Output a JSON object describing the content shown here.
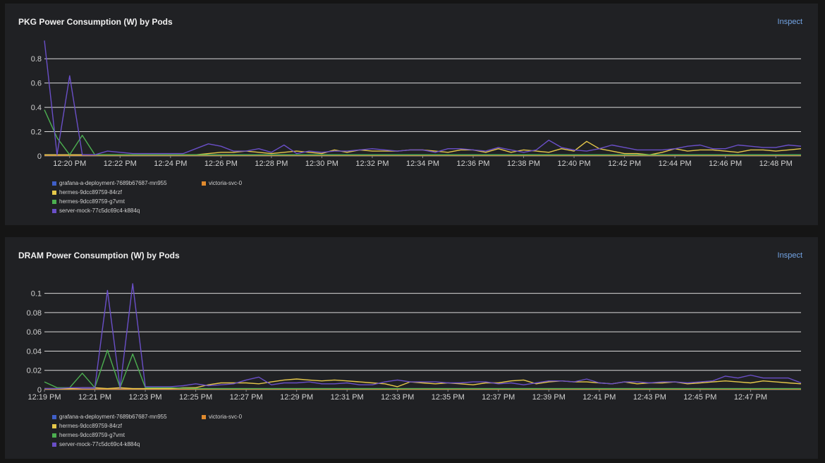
{
  "panels": [
    {
      "title": "PKG Power Consumption (W) by Pods",
      "inspect_label": "Inspect",
      "legend": [
        {
          "label": "grafana-a-deployment-7689b67687-mn955",
          "color": "#3f5fc8"
        },
        {
          "label": "victoria-svc-0",
          "color": "#e08a2e"
        },
        {
          "label": "hermes-9dcc89759-84rzf",
          "color": "#e6c84a"
        },
        {
          "label": "hermes-9dcc89759-g7vmt",
          "color": "#4caf50"
        },
        {
          "label": "server-mock-77c5dc69c4-k884q",
          "color": "#6a4fc8"
        }
      ]
    },
    {
      "title": "DRAM Power Consumption (W) by Pods",
      "inspect_label": "Inspect",
      "legend": [
        {
          "label": "grafana-a-deployment-7689b67687-mn955",
          "color": "#3f5fc8"
        },
        {
          "label": "victoria-svc-0",
          "color": "#e08a2e"
        },
        {
          "label": "hermes-9dcc89759-84rzf",
          "color": "#e6c84a"
        },
        {
          "label": "hermes-9dcc89759-g7vmt",
          "color": "#4caf50"
        },
        {
          "label": "server-mock-77c5dc69c4-k884q",
          "color": "#6a4fc8"
        }
      ]
    }
  ],
  "chart_data": [
    {
      "type": "line",
      "title": "PKG Power Consumption (W) by Pods",
      "ylim": [
        0,
        0.9
      ],
      "yticks": [
        0,
        0.2,
        0.4,
        0.6,
        0.8
      ],
      "ytick_labels": [
        "0",
        "0.2",
        "0.4",
        "0.6",
        "0.8"
      ],
      "xlim": [
        0,
        30
      ],
      "xticks": [
        1,
        3,
        5,
        7,
        9,
        11,
        13,
        15,
        17,
        19,
        21,
        23,
        25,
        27,
        29
      ],
      "xtick_labels": [
        "12:20 PM",
        "12:22 PM",
        "12:24 PM",
        "12:26 PM",
        "12:28 PM",
        "12:30 PM",
        "12:32 PM",
        "12:34 PM",
        "12:36 PM",
        "12:38 PM",
        "12:40 PM",
        "12:42 PM",
        "12:44 PM",
        "12:46 PM",
        "12:48 PM"
      ],
      "grid": true,
      "legend_position": "bottom-left",
      "series": [
        {
          "name": "grafana-a-deployment-7689b67687-mn955",
          "color": "#3f5fc8",
          "x": [
            0,
            1,
            2,
            3,
            4,
            5,
            6,
            7,
            8,
            9,
            10,
            11,
            12,
            13,
            14,
            15,
            16,
            17,
            18,
            19,
            20,
            21,
            22,
            23,
            24,
            25,
            26,
            27,
            28,
            29,
            30
          ],
          "y": [
            0.01,
            0.01,
            0.01,
            0.01,
            0.01,
            0.01,
            0.01,
            0.01,
            0.01,
            0.01,
            0.01,
            0.01,
            0.01,
            0.01,
            0.01,
            0.01,
            0.01,
            0.01,
            0.01,
            0.01,
            0.01,
            0.01,
            0.01,
            0.01,
            0.01,
            0.01,
            0.01,
            0.01,
            0.01,
            0.01,
            0.01
          ]
        },
        {
          "name": "victoria-svc-0",
          "color": "#e08a2e",
          "x": [
            0,
            2,
            4,
            6,
            8,
            10,
            12,
            14,
            16,
            18,
            20,
            22,
            24,
            26,
            28,
            30
          ],
          "y": [
            0.005,
            0.005,
            0.005,
            0.005,
            0.005,
            0.005,
            0.005,
            0.005,
            0.005,
            0.005,
            0.005,
            0.005,
            0.005,
            0.005,
            0.005,
            0.005
          ]
        },
        {
          "name": "hermes-9dcc89759-84rzf",
          "color": "#e6c84a",
          "x": [
            0,
            0.5,
            1,
            1.5,
            2,
            2.5,
            3,
            3.5,
            4,
            4.5,
            5,
            5.5,
            6,
            6.5,
            7,
            7.5,
            8,
            8.5,
            9,
            9.5,
            10,
            10.5,
            11,
            11.5,
            12,
            12.5,
            13,
            13.5,
            14,
            14.5,
            15,
            15.5,
            16,
            16.5,
            17,
            17.5,
            18,
            18.5,
            19,
            19.5,
            20,
            20.5,
            21,
            21.5,
            22,
            22.5,
            23,
            23.5,
            24,
            24.5,
            25,
            25.5,
            26,
            26.5,
            27,
            27.5,
            28,
            28.5,
            29,
            29.5,
            30
          ],
          "y": [
            0.01,
            0.01,
            0.01,
            0.01,
            0.01,
            0.01,
            0.01,
            0.01,
            0.01,
            0.01,
            0.01,
            0.01,
            0.01,
            0.02,
            0.03,
            0.03,
            0.04,
            0.03,
            0.02,
            0.03,
            0.04,
            0.03,
            0.02,
            0.05,
            0.03,
            0.05,
            0.04,
            0.04,
            0.04,
            0.05,
            0.05,
            0.04,
            0.03,
            0.05,
            0.05,
            0.03,
            0.06,
            0.03,
            0.05,
            0.04,
            0.03,
            0.06,
            0.04,
            0.12,
            0.06,
            0.04,
            0.02,
            0.02,
            0.01,
            0.03,
            0.06,
            0.04,
            0.05,
            0.05,
            0.04,
            0.03,
            0.05,
            0.05,
            0.04,
            0.05,
            0.06
          ]
        },
        {
          "name": "hermes-9dcc89759-g7vmt",
          "color": "#4caf50",
          "x": [
            0,
            0.5,
            1,
            1.5,
            2,
            3,
            4,
            5,
            6,
            7,
            8,
            9,
            10,
            11,
            12,
            13,
            14,
            15,
            16,
            17,
            18,
            19,
            20,
            21,
            22,
            23,
            24,
            25,
            26,
            27,
            28,
            29,
            30
          ],
          "y": [
            0.38,
            0.15,
            0.01,
            0.17,
            0.01,
            0.01,
            0.01,
            0.01,
            0.01,
            0.01,
            0.01,
            0.01,
            0.01,
            0.01,
            0.01,
            0.01,
            0.01,
            0.01,
            0.01,
            0.01,
            0.01,
            0.01,
            0.01,
            0.01,
            0.01,
            0.01,
            0.01,
            0.01,
            0.01,
            0.01,
            0.01,
            0.01,
            0.01
          ]
        },
        {
          "name": "server-mock-77c5dc69c4-k884q",
          "color": "#6a4fc8",
          "x": [
            0,
            0.5,
            1,
            1.5,
            2,
            2.5,
            3,
            3.5,
            4,
            4.5,
            5,
            5.5,
            6,
            6.5,
            7,
            7.5,
            8,
            8.5,
            9,
            9.5,
            10,
            10.5,
            11,
            11.5,
            12,
            12.5,
            13,
            13.5,
            14,
            14.5,
            15,
            15.5,
            16,
            16.5,
            17,
            17.5,
            18,
            18.5,
            19,
            19.5,
            20,
            20.5,
            21,
            21.5,
            22,
            22.5,
            23,
            23.5,
            24,
            24.5,
            25,
            25.5,
            26,
            26.5,
            27,
            27.5,
            28,
            28.5,
            29,
            29.5,
            30
          ],
          "y": [
            0.95,
            0.01,
            0.66,
            0.01,
            0.01,
            0.04,
            0.03,
            0.02,
            0.02,
            0.02,
            0.02,
            0.02,
            0.06,
            0.1,
            0.08,
            0.04,
            0.04,
            0.06,
            0.03,
            0.09,
            0.02,
            0.04,
            0.03,
            0.04,
            0.04,
            0.05,
            0.06,
            0.05,
            0.04,
            0.05,
            0.05,
            0.03,
            0.06,
            0.06,
            0.05,
            0.04,
            0.07,
            0.05,
            0.03,
            0.05,
            0.13,
            0.07,
            0.05,
            0.04,
            0.06,
            0.09,
            0.07,
            0.05,
            0.05,
            0.05,
            0.06,
            0.08,
            0.09,
            0.06,
            0.06,
            0.09,
            0.08,
            0.07,
            0.07,
            0.09,
            0.08
          ]
        }
      ]
    },
    {
      "type": "line",
      "title": "DRAM Power Consumption (W) by Pods",
      "ylim": [
        0,
        0.11
      ],
      "yticks": [
        0,
        0.02,
        0.04,
        0.06,
        0.08,
        0.1
      ],
      "ytick_labels": [
        "0",
        "0.02",
        "0.04",
        "0.06",
        "0.08",
        "0.1"
      ],
      "xlim": [
        0,
        30
      ],
      "xticks": [
        0,
        2,
        4,
        6,
        8,
        10,
        12,
        14,
        16,
        18,
        20,
        22,
        24,
        26,
        28
      ],
      "xtick_labels": [
        "12:19 PM",
        "12:21 PM",
        "12:23 PM",
        "12:25 PM",
        "12:27 PM",
        "12:29 PM",
        "12:31 PM",
        "12:33 PM",
        "12:35 PM",
        "12:37 PM",
        "12:39 PM",
        "12:41 PM",
        "12:43 PM",
        "12:45 PM",
        "12:47 PM"
      ],
      "grid": true,
      "legend_position": "bottom-left",
      "series": [
        {
          "name": "grafana-a-deployment-7689b67687-mn955",
          "color": "#3f5fc8",
          "x": [
            0,
            2,
            4,
            6,
            8,
            10,
            12,
            14,
            16,
            18,
            20,
            22,
            24,
            26,
            28,
            30
          ],
          "y": [
            0.001,
            0.001,
            0.001,
            0.001,
            0.001,
            0.001,
            0.001,
            0.001,
            0.001,
            0.001,
            0.001,
            0.001,
            0.001,
            0.001,
            0.001,
            0.001
          ]
        },
        {
          "name": "victoria-svc-0",
          "color": "#e08a2e",
          "x": [
            0,
            2,
            4,
            6,
            8,
            10,
            12,
            14,
            16,
            18,
            20,
            22,
            24,
            26,
            28,
            30
          ],
          "y": [
            0.0005,
            0.0005,
            0.0005,
            0.0005,
            0.0005,
            0.0005,
            0.0005,
            0.0005,
            0.0005,
            0.0005,
            0.0005,
            0.0005,
            0.0005,
            0.0005,
            0.0005,
            0.0005
          ]
        },
        {
          "name": "hermes-9dcc89759-84rzf",
          "color": "#e6c84a",
          "x": [
            0,
            0.5,
            1,
            1.5,
            2,
            2.5,
            3,
            3.5,
            4,
            4.5,
            5,
            5.5,
            6,
            6.5,
            7,
            7.5,
            8,
            8.5,
            9,
            9.5,
            10,
            10.5,
            11,
            11.5,
            12,
            12.5,
            13,
            13.5,
            14,
            14.5,
            15,
            15.5,
            16,
            16.5,
            17,
            17.5,
            18,
            18.5,
            19,
            19.5,
            20,
            20.5,
            21,
            21.5,
            22,
            22.5,
            23,
            23.5,
            24,
            24.5,
            25,
            25.5,
            26,
            26.5,
            27,
            27.5,
            28,
            28.5,
            29,
            29.5,
            30
          ],
          "y": [
            0.001,
            0.001,
            0.001,
            0.002,
            0.002,
            0.001,
            0.002,
            0.001,
            0.001,
            0.001,
            0.001,
            0.002,
            0.002,
            0.005,
            0.007,
            0.007,
            0.007,
            0.006,
            0.008,
            0.01,
            0.011,
            0.01,
            0.009,
            0.01,
            0.009,
            0.008,
            0.007,
            0.006,
            0.003,
            0.008,
            0.007,
            0.006,
            0.007,
            0.006,
            0.005,
            0.007,
            0.007,
            0.009,
            0.01,
            0.006,
            0.008,
            0.009,
            0.008,
            0.008,
            0.007,
            0.006,
            0.008,
            0.006,
            0.007,
            0.007,
            0.008,
            0.006,
            0.007,
            0.008,
            0.009,
            0.008,
            0.007,
            0.009,
            0.008,
            0.007,
            0.006
          ]
        },
        {
          "name": "hermes-9dcc89759-g7vmt",
          "color": "#4caf50",
          "x": [
            0,
            0.5,
            1,
            1.5,
            2,
            2.5,
            3,
            3.5,
            4,
            4.5,
            5,
            6,
            7,
            8,
            9,
            10,
            11,
            12,
            13,
            14,
            15,
            16,
            17,
            18,
            19,
            20,
            21,
            22,
            23,
            24,
            25,
            26,
            27,
            28,
            29,
            30
          ],
          "y": [
            0.008,
            0.002,
            0.002,
            0.017,
            0.002,
            0.041,
            0.002,
            0.037,
            0.002,
            0.002,
            0.002,
            0.001,
            0.001,
            0.001,
            0.001,
            0.001,
            0.001,
            0.001,
            0.001,
            0.001,
            0.001,
            0.001,
            0.001,
            0.001,
            0.001,
            0.001,
            0.001,
            0.001,
            0.001,
            0.001,
            0.001,
            0.001,
            0.001,
            0.001,
            0.001,
            0.001
          ]
        },
        {
          "name": "server-mock-77c5dc69c4-k884q",
          "color": "#6a4fc8",
          "x": [
            0,
            0.5,
            1,
            1.5,
            2,
            2.5,
            3,
            3.5,
            4,
            4.5,
            5,
            5.5,
            6,
            6.5,
            7,
            7.5,
            8,
            8.5,
            9,
            9.5,
            10,
            10.5,
            11,
            11.5,
            12,
            12.5,
            13,
            13.5,
            14,
            14.5,
            15,
            15.5,
            16,
            16.5,
            17,
            17.5,
            18,
            18.5,
            19,
            19.5,
            20,
            20.5,
            21,
            21.5,
            22,
            22.5,
            23,
            23.5,
            24,
            24.5,
            25,
            25.5,
            26,
            26.5,
            27,
            27.5,
            28,
            28.5,
            29,
            29.5,
            30
          ],
          "y": [
            0.001,
            0.001,
            0.002,
            0.002,
            0.002,
            0.103,
            0.002,
            0.11,
            0.003,
            0.003,
            0.003,
            0.004,
            0.006,
            0.004,
            0.005,
            0.006,
            0.01,
            0.013,
            0.005,
            0.007,
            0.007,
            0.008,
            0.006,
            0.006,
            0.007,
            0.005,
            0.005,
            0.008,
            0.01,
            0.008,
            0.008,
            0.008,
            0.007,
            0.007,
            0.008,
            0.008,
            0.006,
            0.007,
            0.005,
            0.007,
            0.009,
            0.009,
            0.008,
            0.011,
            0.007,
            0.006,
            0.008,
            0.008,
            0.007,
            0.008,
            0.008,
            0.007,
            0.008,
            0.009,
            0.014,
            0.012,
            0.015,
            0.012,
            0.012,
            0.012,
            0.007
          ]
        }
      ]
    }
  ]
}
